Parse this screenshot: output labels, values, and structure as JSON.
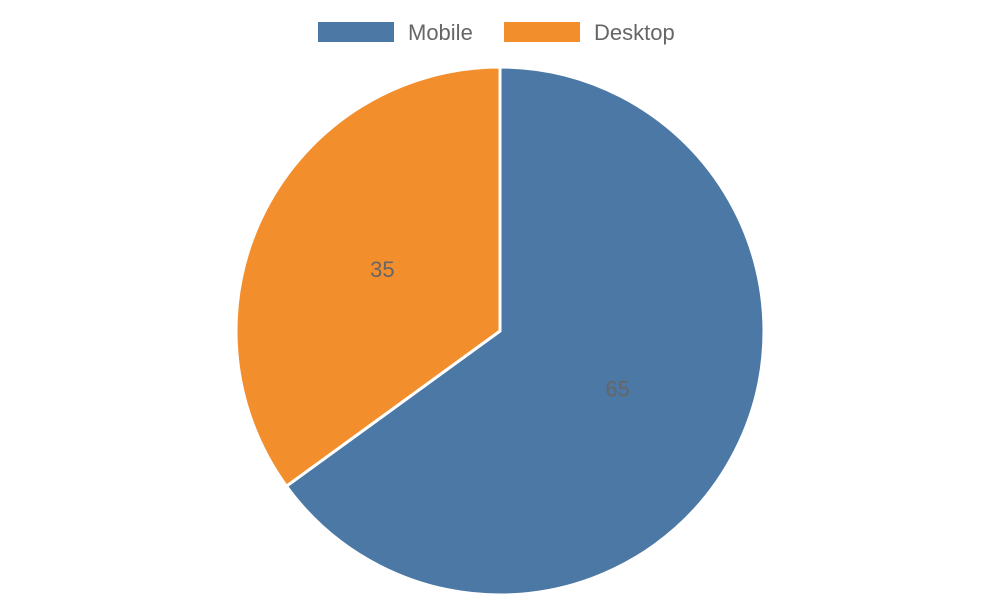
{
  "chart_data": {
    "type": "pie",
    "title": "",
    "categories": [
      "Mobile",
      "Desktop"
    ],
    "values": [
      65,
      35
    ],
    "colors": [
      "#4c78a6",
      "#f28e2c"
    ],
    "start_angle_deg": 0,
    "direction": "clockwise",
    "legend": {
      "position": "top",
      "entries": [
        {
          "label": "Mobile",
          "color": "#4c78a6"
        },
        {
          "label": "Desktop",
          "color": "#f28e2c"
        }
      ]
    },
    "data_labels": [
      "65",
      "35"
    ]
  }
}
